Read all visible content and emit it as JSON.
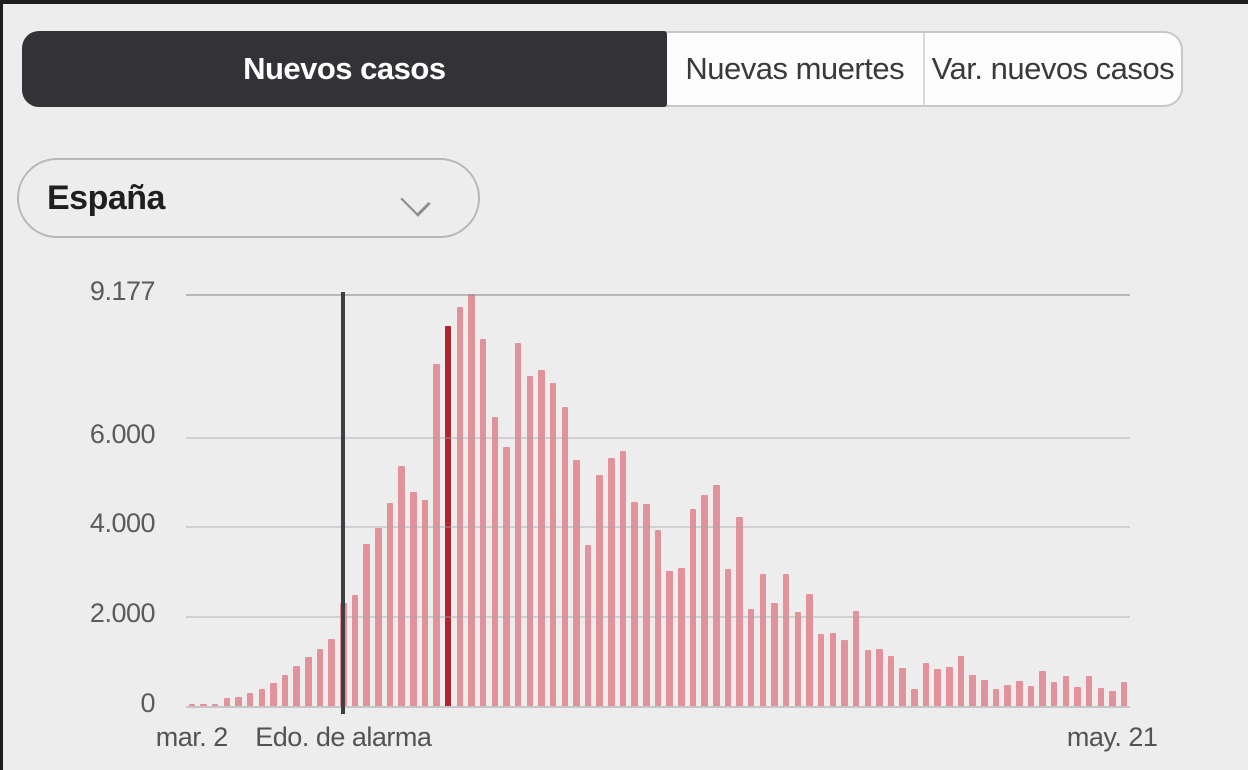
{
  "tabs": {
    "items": [
      {
        "label": "Nuevos casos",
        "active": true
      },
      {
        "label": "Nuevas muertes",
        "active": false
      },
      {
        "label": "Var. nuevos casos",
        "active": false
      }
    ]
  },
  "region_selector": {
    "value": "España"
  },
  "chart_data": {
    "type": "bar",
    "title": "",
    "ylabel": "",
    "xlabel": "",
    "ylim": [
      0,
      9177
    ],
    "grid": true,
    "x_unit": "day",
    "x_start_label": "mar. 2",
    "x_end_label": "may. 21",
    "annotation": {
      "label": "Edo. de alarma",
      "bar_index": 13
    },
    "highlight_bar_index": 22,
    "yticks": [
      {
        "label": "9.177",
        "value": 9177
      },
      {
        "label": "6.000",
        "value": 6000
      },
      {
        "label": "4.000",
        "value": 4000
      },
      {
        "label": "2.000",
        "value": 2000
      },
      {
        "label": "0",
        "value": 0
      }
    ],
    "values": [
      40,
      45,
      55,
      180,
      210,
      300,
      370,
      510,
      680,
      900,
      1100,
      1270,
      1490,
      2300,
      2480,
      3600,
      3970,
      4520,
      5350,
      4760,
      4580,
      7620,
      8460,
      8890,
      9177,
      8170,
      6440,
      5780,
      8080,
      7340,
      7490,
      7200,
      6650,
      5480,
      3590,
      5150,
      5520,
      5670,
      4535,
      4490,
      3920,
      3000,
      3070,
      4380,
      4710,
      4920,
      3050,
      4210,
      2170,
      2930,
      2300,
      2945,
      2090,
      2490,
      1615,
      1630,
      1480,
      2125,
      1250,
      1265,
      1115,
      850,
      390,
      965,
      830,
      880,
      1115,
      700,
      590,
      370,
      460,
      550,
      440,
      770,
      530,
      665,
      420,
      660,
      400,
      345,
      545
    ],
    "colors": {
      "bar": "#e2929a",
      "highlight_bar": "#b0242f",
      "annotation_line": "#3e3e44",
      "grid": "#c9c9cd",
      "axis_text": "#5b5b5e"
    }
  }
}
